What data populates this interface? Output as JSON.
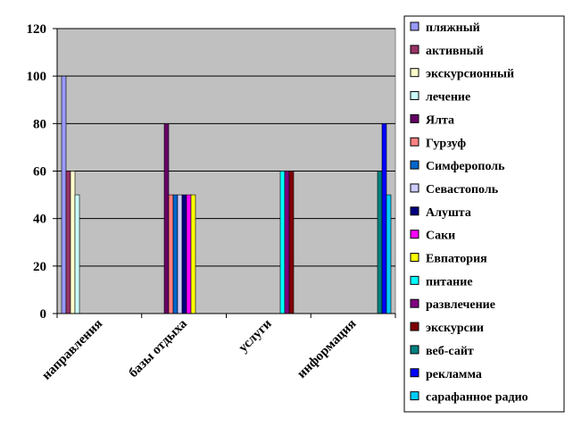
{
  "chart_data": {
    "type": "bar",
    "categories": [
      "направления",
      "базы отдыха",
      "услуги",
      "информация"
    ],
    "ylim": [
      0,
      120
    ],
    "yticks": [
      0,
      20,
      40,
      60,
      80,
      100,
      120
    ],
    "grid": true,
    "legend_position": "right",
    "plot_background": "#c0c0c0",
    "series": [
      {
        "name": "пляжный",
        "color": "#9999ff",
        "values": [
          100,
          null,
          null,
          null
        ]
      },
      {
        "name": "активный",
        "color": "#993366",
        "values": [
          60,
          null,
          null,
          null
        ]
      },
      {
        "name": "экскурсионный",
        "color": "#ffffcc",
        "values": [
          60,
          null,
          null,
          null
        ]
      },
      {
        "name": "лечение",
        "color": "#ccffff",
        "values": [
          50,
          null,
          null,
          null
        ]
      },
      {
        "name": "Ялта",
        "color": "#660066",
        "values": [
          null,
          80,
          null,
          null
        ]
      },
      {
        "name": "Гурзуф",
        "color": "#ff8080",
        "values": [
          null,
          50,
          null,
          null
        ]
      },
      {
        "name": "Симферополь",
        "color": "#0066cc",
        "values": [
          null,
          50,
          null,
          null
        ]
      },
      {
        "name": "Севастополь",
        "color": "#ccccff",
        "values": [
          null,
          50,
          null,
          null
        ]
      },
      {
        "name": "Алушта",
        "color": "#000080",
        "values": [
          null,
          50,
          null,
          null
        ]
      },
      {
        "name": "Саки",
        "color": "#ff00ff",
        "values": [
          null,
          50,
          null,
          null
        ]
      },
      {
        "name": "Евпатория",
        "color": "#ffff00",
        "values": [
          null,
          50,
          null,
          null
        ]
      },
      {
        "name": "питание",
        "color": "#00ffff",
        "values": [
          null,
          null,
          60,
          null
        ]
      },
      {
        "name": "развлечение",
        "color": "#800080",
        "values": [
          null,
          null,
          60,
          null
        ]
      },
      {
        "name": "экскурсии",
        "color": "#800000",
        "values": [
          null,
          null,
          60,
          null
        ]
      },
      {
        "name": "веб-сайт",
        "color": "#008080",
        "values": [
          null,
          null,
          null,
          60
        ]
      },
      {
        "name": "рекламма",
        "color": "#0000ff",
        "values": [
          null,
          null,
          null,
          80
        ]
      },
      {
        "name": "сарафанное радио",
        "color": "#00ccff",
        "values": [
          null,
          null,
          null,
          50
        ]
      }
    ]
  }
}
